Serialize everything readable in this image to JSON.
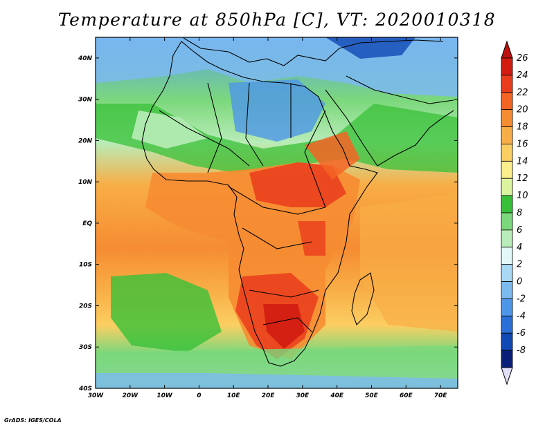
{
  "title": "Temperature at 850hPa [C], VT: 2020010318",
  "credit": "GrADS: IGES/COLA",
  "map": {
    "lon_range": [
      -30,
      75
    ],
    "lat_range": [
      -40,
      45
    ],
    "lat_ticks": [
      {
        "value": 40,
        "label": "40N"
      },
      {
        "value": 30,
        "label": "30N"
      },
      {
        "value": 20,
        "label": "20N"
      },
      {
        "value": 10,
        "label": "10N"
      },
      {
        "value": 0,
        "label": "EQ"
      },
      {
        "value": -10,
        "label": "10S"
      },
      {
        "value": -20,
        "label": "20S"
      },
      {
        "value": -30,
        "label": "30S"
      },
      {
        "value": -40,
        "label": "40S"
      }
    ],
    "lon_ticks": [
      {
        "value": -30,
        "label": "30W"
      },
      {
        "value": -20,
        "label": "20W"
      },
      {
        "value": -10,
        "label": "10W"
      },
      {
        "value": 0,
        "label": "0"
      },
      {
        "value": 10,
        "label": "10E"
      },
      {
        "value": 20,
        "label": "20E"
      },
      {
        "value": 30,
        "label": "30E"
      },
      {
        "value": 40,
        "label": "40E"
      },
      {
        "value": 50,
        "label": "50E"
      },
      {
        "value": 60,
        "label": "60E"
      },
      {
        "value": 70,
        "label": "70E"
      }
    ]
  },
  "colorbar": {
    "levels": [
      {
        "label": "26",
        "color": "#d21c12"
      },
      {
        "label": "24",
        "color": "#ea3c1c"
      },
      {
        "label": "22",
        "color": "#f46424"
      },
      {
        "label": "20",
        "color": "#f68c32"
      },
      {
        "label": "18",
        "color": "#f8ae46"
      },
      {
        "label": "16",
        "color": "#fbce62"
      },
      {
        "label": "14",
        "color": "#fbee8c"
      },
      {
        "label": "12",
        "color": "#dcf4a0"
      },
      {
        "label": "10",
        "color": "#38c038"
      },
      {
        "label": "8",
        "color": "#7cd87c"
      },
      {
        "label": "6",
        "color": "#b8ecb8"
      },
      {
        "label": "4",
        "color": "#e2f8f8"
      },
      {
        "label": "2",
        "color": "#a8d8f4"
      },
      {
        "label": "0",
        "color": "#7cbaf0"
      },
      {
        "label": "-2",
        "color": "#4e96e8"
      },
      {
        "label": "-4",
        "color": "#2a70d8"
      },
      {
        "label": "-6",
        "color": "#1048b4"
      },
      {
        "label": "-8",
        "color": "#0a2078"
      }
    ],
    "bottom_color": "#e0e0f8",
    "top_color": "#c01010"
  }
}
